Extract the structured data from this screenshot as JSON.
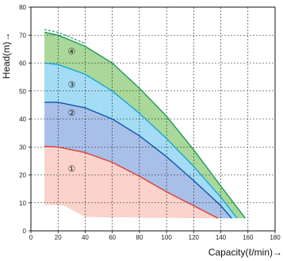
{
  "chart_data": {
    "type": "area",
    "xlabel": "Capacity(ℓ/min)→",
    "ylabel": "Head(m)→",
    "xlim": [
      0,
      180
    ],
    "ylim": [
      0,
      80
    ],
    "xticks": [
      0,
      20,
      40,
      60,
      80,
      100,
      120,
      140,
      160,
      180
    ],
    "yticks": [
      0,
      10,
      20,
      30,
      40,
      50,
      60,
      70,
      80
    ],
    "grid": true,
    "min_curve": {
      "color": "#e6524f",
      "x": [
        10,
        25,
        40,
        140
      ],
      "y": [
        9.5,
        9,
        5,
        4.5
      ]
    },
    "bands": [
      {
        "label": "①",
        "color": "#fbd3cb",
        "line_color": "#e03c3c",
        "x": [
          10,
          20,
          40,
          60,
          80,
          100,
          120,
          138
        ],
        "y": [
          30.2,
          30,
          28,
          24.5,
          19.5,
          14,
          9,
          4.5
        ],
        "label_at": [
          30,
          22
        ]
      },
      {
        "label": "②",
        "color": "#a8c0e8",
        "line_color": "#0d56a8",
        "x": [
          10,
          20,
          40,
          60,
          80,
          100,
          120,
          140,
          148
        ],
        "y": [
          46,
          46,
          44,
          40,
          34,
          26.5,
          18,
          9,
          4.5
        ],
        "label_at": [
          30,
          42
        ]
      },
      {
        "label": "③",
        "color": "#a5dcf5",
        "line_color": "#17a7d8",
        "x": [
          10,
          20,
          40,
          60,
          80,
          100,
          120,
          140,
          152
        ],
        "y": [
          60,
          59.5,
          56,
          50,
          42,
          33,
          23,
          12,
          4.5
        ],
        "label_at": [
          30,
          52
        ]
      },
      {
        "label": "④",
        "color": "#a9d89a",
        "line_color": "#1b9a5a",
        "x": [
          10,
          20,
          40,
          60,
          80,
          100,
          120,
          140,
          158
        ],
        "y": [
          71,
          70,
          66,
          60,
          51,
          41,
          29,
          16,
          4.5
        ],
        "label_at": [
          30,
          64
        ]
      }
    ]
  }
}
